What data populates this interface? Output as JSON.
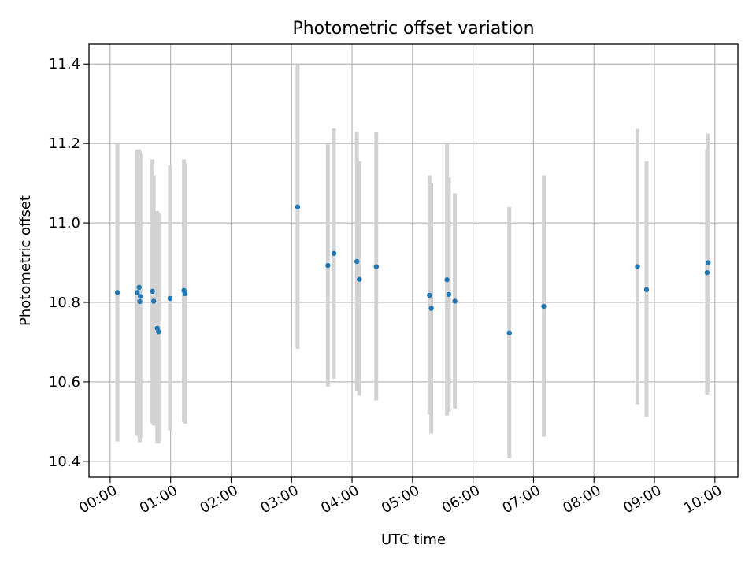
{
  "chart_data": {
    "type": "scatter",
    "title": "Photometric offset variation",
    "xlabel": "UTC time",
    "ylabel": "Photometric offset",
    "x_unit": "hours UTC",
    "xlim": [
      -0.35,
      10.38
    ],
    "ylim": [
      10.36,
      11.45
    ],
    "grid": true,
    "point_color": "#1f77b4",
    "errorbar_color": "#d3d3d3",
    "xticks": [
      {
        "value": 0,
        "label": "00:00"
      },
      {
        "value": 1,
        "label": "01:00"
      },
      {
        "value": 2,
        "label": "02:00"
      },
      {
        "value": 3,
        "label": "03:00"
      },
      {
        "value": 4,
        "label": "04:00"
      },
      {
        "value": 5,
        "label": "05:00"
      },
      {
        "value": 6,
        "label": "06:00"
      },
      {
        "value": 7,
        "label": "07:00"
      },
      {
        "value": 8,
        "label": "08:00"
      },
      {
        "value": 9,
        "label": "09:00"
      },
      {
        "value": 10,
        "label": "10:00"
      }
    ],
    "yticks": [
      {
        "value": 10.4,
        "label": "10.4"
      },
      {
        "value": 10.6,
        "label": "10.6"
      },
      {
        "value": 10.8,
        "label": "10.8"
      },
      {
        "value": 11.0,
        "label": "11.0"
      },
      {
        "value": 11.2,
        "label": "11.2"
      },
      {
        "value": 11.4,
        "label": "11.4"
      }
    ],
    "points": [
      {
        "x": 0.12,
        "y": 10.825,
        "low": 10.45,
        "high": 11.2
      },
      {
        "x": 0.45,
        "y": 10.825,
        "low": 10.465,
        "high": 11.185
      },
      {
        "x": 0.48,
        "y": 10.838,
        "low": 10.46,
        "high": 11.185
      },
      {
        "x": 0.49,
        "y": 10.802,
        "low": 10.448,
        "high": 11.18
      },
      {
        "x": 0.5,
        "y": 10.815,
        "low": 10.46,
        "high": 11.175
      },
      {
        "x": 0.7,
        "y": 10.828,
        "low": 10.495,
        "high": 11.16
      },
      {
        "x": 0.72,
        "y": 10.803,
        "low": 10.49,
        "high": 11.12
      },
      {
        "x": 0.78,
        "y": 10.735,
        "low": 10.445,
        "high": 11.03
      },
      {
        "x": 0.8,
        "y": 10.726,
        "low": 10.445,
        "high": 11.025
      },
      {
        "x": 0.99,
        "y": 10.81,
        "low": 10.478,
        "high": 11.145
      },
      {
        "x": 1.22,
        "y": 10.83,
        "low": 10.5,
        "high": 11.16
      },
      {
        "x": 1.24,
        "y": 10.822,
        "low": 10.495,
        "high": 11.15
      },
      {
        "x": 3.1,
        "y": 11.04,
        "low": 10.683,
        "high": 11.397
      },
      {
        "x": 3.6,
        "y": 10.893,
        "low": 10.588,
        "high": 11.198
      },
      {
        "x": 3.7,
        "y": 10.923,
        "low": 10.608,
        "high": 11.238
      },
      {
        "x": 4.08,
        "y": 10.903,
        "low": 10.578,
        "high": 11.23
      },
      {
        "x": 4.12,
        "y": 10.858,
        "low": 10.565,
        "high": 11.155
      },
      {
        "x": 4.4,
        "y": 10.89,
        "low": 10.553,
        "high": 11.228
      },
      {
        "x": 5.28,
        "y": 10.818,
        "low": 10.518,
        "high": 11.12
      },
      {
        "x": 5.31,
        "y": 10.785,
        "low": 10.47,
        "high": 11.1
      },
      {
        "x": 5.57,
        "y": 10.857,
        "low": 10.515,
        "high": 11.2
      },
      {
        "x": 5.6,
        "y": 10.82,
        "low": 10.525,
        "high": 11.115
      },
      {
        "x": 5.7,
        "y": 10.803,
        "low": 10.533,
        "high": 11.075
      },
      {
        "x": 6.6,
        "y": 10.723,
        "low": 10.408,
        "high": 11.04
      },
      {
        "x": 7.17,
        "y": 10.79,
        "low": 10.462,
        "high": 11.12
      },
      {
        "x": 8.72,
        "y": 10.89,
        "low": 10.543,
        "high": 11.237
      },
      {
        "x": 8.87,
        "y": 10.832,
        "low": 10.512,
        "high": 11.155
      },
      {
        "x": 9.87,
        "y": 10.875,
        "low": 10.568,
        "high": 11.185
      },
      {
        "x": 9.89,
        "y": 10.9,
        "low": 10.575,
        "high": 11.225
      }
    ]
  }
}
